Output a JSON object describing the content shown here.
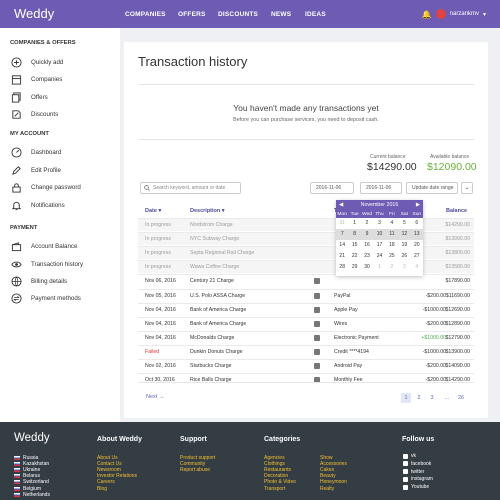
{
  "topbar": {
    "logo": "Weddy",
    "nav": [
      "COMPANIES",
      "OFFERS",
      "DISCOUNTS",
      "NEWS",
      "IDEAS"
    ],
    "username": "narzankmv"
  },
  "sidebar": {
    "section_companies": "COMPANIES & OFFERS",
    "companies_items": [
      {
        "label": "Quickly add",
        "icon": "plus-circle-icon"
      },
      {
        "label": "Companies",
        "icon": "building-icon"
      },
      {
        "label": "Offers",
        "icon": "copy-icon"
      },
      {
        "label": "Discounts",
        "icon": "percent-icon"
      }
    ],
    "section_account": "MY ACCOUNT",
    "account_items": [
      {
        "label": "Dashboard",
        "icon": "dashboard-icon"
      },
      {
        "label": "Edit Profile",
        "icon": "pencil-icon"
      },
      {
        "label": "Change password",
        "icon": "lock-icon"
      },
      {
        "label": "Notifications",
        "icon": "bell-icon"
      }
    ],
    "section_payment": "PAYMENT",
    "payment_items": [
      {
        "label": "Account Balance",
        "icon": "wallet-icon"
      },
      {
        "label": "Transaction history",
        "icon": "eye-icon"
      },
      {
        "label": "Billing details",
        "icon": "globe-icon"
      },
      {
        "label": "Payment methods",
        "icon": "exchange-icon"
      }
    ]
  },
  "main": {
    "title": "Transaction history",
    "empty_title": "You haven't made any transactions yet",
    "empty_sub": "Before you can purchase services, you need to deposit cash.",
    "current_balance_label": "Current balance",
    "current_balance": "$14290.00",
    "available_balance_label": "Available balance",
    "available_balance": "$12090.00",
    "search_placeholder": "Search keyword, amount or date",
    "date_from": "2016-11-06",
    "date_to": "2016-11-06",
    "update_button": "Update date range",
    "columns": {
      "date": "Date",
      "description": "Description",
      "balance": "Balance"
    },
    "rows": [
      {
        "date": "In progress",
        "desc": "Nordstrom Charge",
        "method": "",
        "amount": "",
        "balance": "$14290.00",
        "status": "progress"
      },
      {
        "date": "In progress",
        "desc": "NYC Subway Charge",
        "method": "",
        "amount": "",
        "balance": "$13990.00",
        "status": "progress"
      },
      {
        "date": "In progress",
        "desc": "Septa Regional Rail Charge",
        "method": "",
        "amount": "",
        "balance": "$13800.00",
        "status": "progress"
      },
      {
        "date": "In progress",
        "desc": "Wawa Coffee Charge",
        "method": "",
        "amount": "",
        "balance": "$13580.00",
        "status": "progress"
      },
      {
        "date": "Nov 06, 2016",
        "desc": "Century 21 Charge",
        "method": "",
        "amount": "",
        "balance": "$17890.00",
        "status": "done"
      },
      {
        "date": "Nov 05, 2016",
        "desc": "U.S. Polo ASSA Charge",
        "method": "PayPal",
        "amount": "-$200.00",
        "balance": "$11690.00",
        "status": "done"
      },
      {
        "date": "Nov 04, 2016",
        "desc": "Bank of America Charge",
        "method": "Apple Pay",
        "amount": "-$1000.00",
        "balance": "$12690.00",
        "status": "done"
      },
      {
        "date": "Nov 04, 2016",
        "desc": "Bank of America Charge",
        "method": "Wires",
        "amount": "-$200.00",
        "balance": "$12890.00",
        "status": "done"
      },
      {
        "date": "Nov 04, 2016",
        "desc": "McDonalds Charge",
        "method": "Electronic Payment",
        "amount": "+$1000.00",
        "balance": "$12790.00",
        "status": "done",
        "positive": true
      },
      {
        "date": "Failed",
        "desc": "Dunkin Donuts Charge",
        "method": "Credit ****4194",
        "amount": "-$1000.00",
        "balance": "$13900.00",
        "status": "failed"
      },
      {
        "date": "Nov 02, 2016",
        "desc": "Starbucks Charge",
        "method": "Android Pay",
        "amount": "-$200.00",
        "balance": "$14090.00",
        "status": "done"
      },
      {
        "date": "Oct 30, 2016",
        "desc": "Rice Balls Charge",
        "method": "Monthly Fee",
        "amount": "-$200.00",
        "balance": "$14290.00",
        "status": "done"
      }
    ],
    "calendar": {
      "month": "November 2016",
      "days": [
        "Mon",
        "Tue",
        "Wed",
        "Thu",
        "Fri",
        "Sat",
        "Sun"
      ],
      "cells": [
        "31",
        "1",
        "2",
        "3",
        "4",
        "5",
        "6",
        "7",
        "8",
        "9",
        "10",
        "11",
        "12",
        "13",
        "14",
        "15",
        "16",
        "17",
        "18",
        "19",
        "20",
        "21",
        "22",
        "23",
        "24",
        "25",
        "26",
        "27",
        "28",
        "29",
        "30",
        "1",
        "2",
        "3",
        "4"
      ]
    },
    "pagination": {
      "next": "Next →",
      "pages": [
        "1",
        "2",
        "3",
        "...",
        "26"
      ]
    }
  },
  "footer": {
    "logo": "Weddy",
    "countries": [
      "Russia",
      "Kazakhstan",
      "Ukraine",
      "Belarus",
      "Switzerland",
      "Belgium",
      "Netherlands"
    ],
    "about_head": "About Weddy",
    "about_links": [
      "About Us",
      "Contact Us",
      "Newsroom",
      "Investor Relations",
      "Careers",
      "Blog"
    ],
    "support_head": "Support",
    "support_links": [
      "Product support",
      "Community",
      "Report abuse"
    ],
    "categories_head": "Categories",
    "cat_col1": [
      "Agencies",
      "Clothings",
      "Restaurants",
      "Decoration",
      "Photo & Video",
      "Transport"
    ],
    "cat_col2": [
      "Show",
      "Accessories",
      "Cakes",
      "Beauty",
      "Honeymoon",
      "Realty"
    ],
    "follow_head": "Follow us",
    "social": [
      "vk",
      "facebook",
      "twitter",
      "instagram",
      "Youtube"
    ]
  }
}
